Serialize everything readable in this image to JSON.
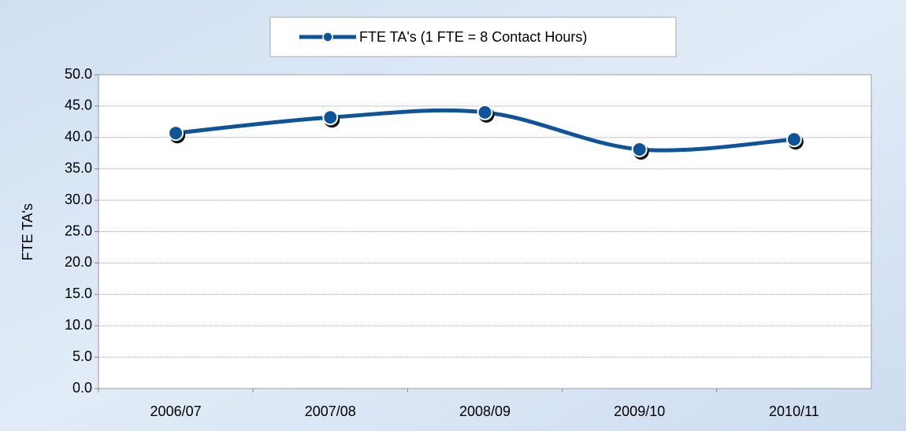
{
  "chart_data": {
    "type": "line",
    "y_label": "FTE TA's",
    "categories": [
      "2006/07",
      "2007/08",
      "2008/09",
      "2009/10",
      "2010/11"
    ],
    "series": [
      {
        "name": "FTE TA's (1 FTE = 8 Contact Hours)",
        "color": "#0f5499",
        "values": [
          40.7,
          43.2,
          44.0,
          38.1,
          39.7
        ]
      }
    ],
    "ylim": [
      0,
      50
    ],
    "yticks": [
      {
        "value": 0,
        "label": "0.0"
      },
      {
        "value": 5,
        "label": "5.0"
      },
      {
        "value": 10,
        "label": "10.0"
      },
      {
        "value": 15,
        "label": "15.0"
      },
      {
        "value": 20,
        "label": "20.0"
      },
      {
        "value": 25,
        "label": "25.0"
      },
      {
        "value": 30,
        "label": "30.0"
      },
      {
        "value": 35,
        "label": "35.0"
      },
      {
        "value": 40,
        "label": "40.0"
      },
      {
        "value": 45,
        "label": "45.0"
      },
      {
        "value": 50,
        "label": "50.0"
      }
    ],
    "grid": true,
    "smooth": true,
    "legend": "top"
  }
}
